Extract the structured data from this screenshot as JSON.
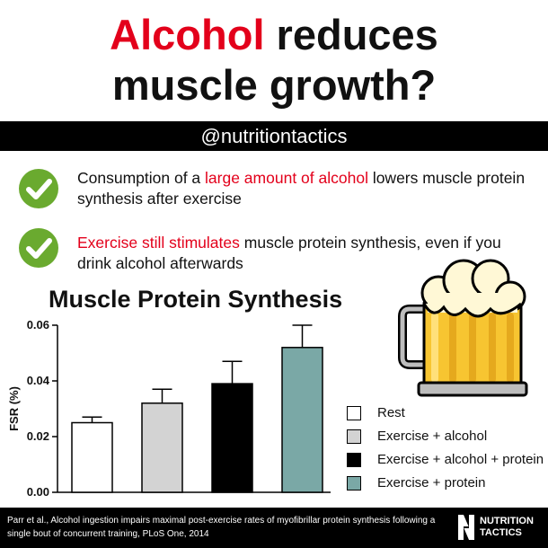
{
  "header": {
    "title_accent": "Alcohol",
    "title_rest": " reduces",
    "title_line2": "muscle growth?"
  },
  "handle": "@nutritiontactics",
  "bullets": [
    {
      "icon": "check-circle-icon",
      "pre": "Consumption of a ",
      "highlight": "large amount of alcohol",
      "post": " lowers muscle protein synthesis after exercise"
    },
    {
      "icon": "check-circle-icon",
      "pre": "",
      "highlight": "Exercise still stimulates",
      "post": " muscle protein synthesis, even if you drink alcohol afterwards"
    }
  ],
  "colors": {
    "accent": "#e3001b",
    "check": "#6aaa2f",
    "bar_rest": "#ffffff",
    "bar_ex_alcohol": "#d3d3d3",
    "bar_ex_alcohol_protein": "#000000",
    "bar_ex_protein": "#7aa8a6"
  },
  "chart_data": {
    "type": "bar",
    "title": "Muscle Protein Synthesis",
    "ylabel": "FSR (%)",
    "xlabel": "",
    "ylim": [
      0,
      0.06
    ],
    "yticks": [
      "0.00",
      "0.02",
      "0.04",
      "0.06"
    ],
    "legend_position": "right",
    "categories": [
      "Rest",
      "Exercise + alcohol",
      "Exercise + alcohol + protein",
      "Exercise + protein"
    ],
    "values": [
      0.025,
      0.032,
      0.039,
      0.052
    ],
    "errors": [
      0.002,
      0.005,
      0.008,
      0.008
    ],
    "colors": [
      "#ffffff",
      "#d3d3d3",
      "#000000",
      "#7aa8a6"
    ]
  },
  "footer": {
    "citation": "Parr et al., Alcohol ingestion impairs maximal post-exercise rates of myofibrillar protein synthesis following a single bout of concurrent training, PLoS One, 2014",
    "brand_line1": "NUTRITION",
    "brand_line2": "TACTICS"
  },
  "illustration": {
    "icon": "beer-mug-icon"
  }
}
